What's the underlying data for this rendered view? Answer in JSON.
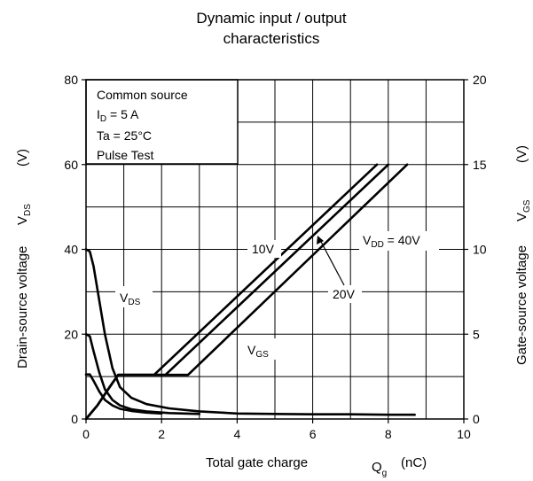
{
  "chart_data": {
    "type": "line",
    "title_line1": "Dynamic input / output",
    "title_line2": "characteristics",
    "xlabel": "Total gate charge",
    "xlabel_symbol": "Q",
    "xlabel_symbol_sub": "g",
    "xlabel_unit": "(nC)",
    "ylabel_left": "Drain-source voltage",
    "ylabel_left_symbol": "V",
    "ylabel_left_symbol_sub": "DS",
    "ylabel_left_unit": "(V)",
    "ylabel_right": "Gate-source voltage",
    "ylabel_right_symbol": "V",
    "ylabel_right_symbol_sub": "GS",
    "ylabel_right_unit": "(V)",
    "xlim": [
      0,
      10
    ],
    "ylim_left": [
      0,
      80
    ],
    "ylim_right": [
      0,
      20
    ],
    "x_ticks": [
      "0",
      "2",
      "4",
      "6",
      "8",
      "10"
    ],
    "y_left_ticks": [
      "0",
      "20",
      "40",
      "60",
      "80"
    ],
    "y_right_ticks": [
      "0",
      "5",
      "10",
      "15",
      "20"
    ],
    "grid": true,
    "conditions": [
      {
        "text": "Common source"
      },
      {
        "main": "I",
        "sub": "D",
        "rest": " = 5 A"
      },
      {
        "text": "Ta = 25°C"
      },
      {
        "text": "Pulse Test"
      }
    ],
    "annotations": {
      "vds": {
        "main": "V",
        "sub": "DS"
      },
      "vgs": {
        "main": "V",
        "sub": "GS"
      },
      "v10": "10V",
      "v20": "20V",
      "v40": {
        "main": "V",
        "sub": "DD",
        "rest": " = 40V"
      }
    },
    "series": [
      {
        "axis": "left",
        "x": [
          0,
          0.1,
          0.2,
          0.35,
          0.5,
          0.7,
          0.9,
          1.2,
          1.6,
          2.2,
          3,
          4,
          5,
          6,
          7,
          8,
          8.7
        ],
        "y": [
          40,
          39.5,
          36,
          28,
          20,
          12,
          7.5,
          5,
          3.5,
          2.5,
          1.8,
          1.3,
          1.2,
          1.1,
          1.1,
          1.0,
          1.0
        ]
      },
      {
        "axis": "left",
        "x": [
          0,
          0.1,
          0.2,
          0.35,
          0.5,
          0.7,
          0.9,
          1.2,
          1.6,
          2.2,
          3
        ],
        "y": [
          20,
          19.5,
          16,
          11,
          7,
          4.5,
          3.2,
          2.3,
          1.8,
          1.4,
          1.2
        ]
      },
      {
        "axis": "left",
        "x": [
          0,
          0.1,
          0.2,
          0.35,
          0.5,
          0.7,
          0.9,
          1.2,
          1.6,
          2
        ],
        "y": [
          10.5,
          10.5,
          9,
          6.5,
          4.5,
          3.2,
          2.4,
          1.9,
          1.5,
          1.3
        ]
      },
      {
        "axis": "right",
        "x": [
          0,
          0.3,
          0.6,
          0.85,
          1.8,
          7.7
        ],
        "y": [
          0,
          0.8,
          1.8,
          2.6,
          2.6,
          15
        ]
      },
      {
        "axis": "right",
        "x": [
          0,
          0.3,
          0.6,
          0.85,
          2.1,
          8.0
        ],
        "y": [
          0,
          0.8,
          1.8,
          2.6,
          2.6,
          15
        ]
      },
      {
        "axis": "right",
        "x": [
          0,
          0.3,
          0.6,
          0.85,
          2.7,
          8.5
        ],
        "y": [
          0,
          0.8,
          1.8,
          2.6,
          2.6,
          15
        ]
      }
    ]
  }
}
